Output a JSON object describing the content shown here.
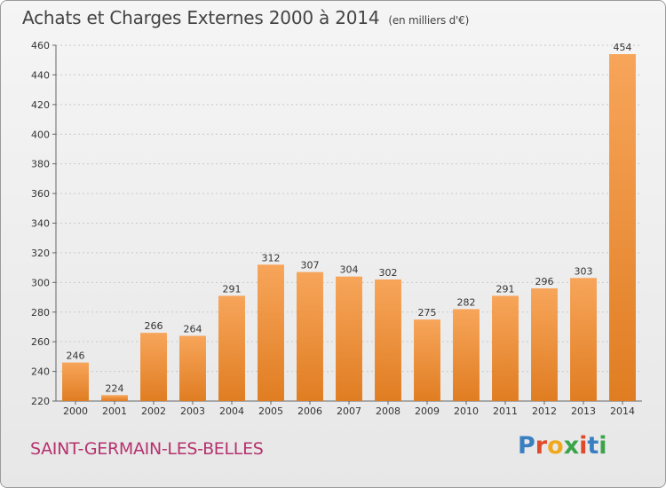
{
  "header": {
    "title": "Achats et Charges Externes 2000 à 2014",
    "unit": "(en milliers d'€)"
  },
  "footer": {
    "commune": "SAINT-GERMAIN-LES-BELLES",
    "logo": "Proxiti"
  },
  "colors": {
    "bar_light": "#f7a55a",
    "bar_dark": "#e07d22",
    "commune_text": "#b5326e",
    "logo_letters": [
      "#3a7fc1",
      "#e0492a",
      "#f2a81d",
      "#3ba34b",
      "#e0492a",
      "#3a7fc1",
      "#3ba34b"
    ]
  },
  "chart_data": {
    "type": "bar",
    "categories": [
      "2000",
      "2001",
      "2002",
      "2003",
      "2004",
      "2005",
      "2006",
      "2007",
      "2008",
      "2009",
      "2010",
      "2011",
      "2012",
      "2013",
      "2014"
    ],
    "values": [
      246,
      224,
      266,
      264,
      291,
      312,
      307,
      304,
      302,
      275,
      282,
      291,
      296,
      303,
      454
    ],
    "ylim": [
      220,
      460
    ],
    "yticks": [
      220,
      240,
      260,
      280,
      300,
      320,
      340,
      360,
      380,
      400,
      420,
      440,
      460
    ],
    "grid": true,
    "title": "Achats et Charges Externes 2000 à 2014",
    "xlabel": "",
    "ylabel": ""
  }
}
